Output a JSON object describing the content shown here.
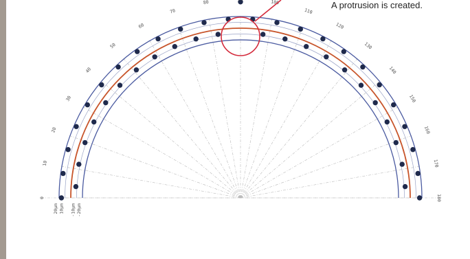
{
  "callout": {
    "text": "A protrusion is created."
  },
  "angle_labels": [
    "0",
    "10",
    "20",
    "30",
    "40",
    "50",
    "60",
    "70",
    "80",
    "90",
    "100",
    "110",
    "120",
    "130",
    "140",
    "150",
    "160",
    "170",
    "180"
  ],
  "scale_labels": [
    "20μm",
    "10μm",
    "-10μm",
    "-20μm"
  ],
  "measurement": {
    "deviation_um": [
      0,
      0,
      0,
      0,
      0,
      0,
      0,
      0,
      0,
      0,
      0,
      0,
      0,
      0,
      0,
      0,
      0,
      0,
      0,
      0,
      0,
      0,
      0,
      0,
      0,
      0,
      0,
      0,
      0,
      0,
      0,
      0,
      0,
      0,
      0,
      0,
      0,
      0,
      0,
      0,
      0,
      0,
      0,
      0,
      0,
      0,
      0
    ],
    "protrusion_um": 10
  },
  "colors": {
    "outer_ring": "#4a5aa0",
    "reference_ring": "#c8552b",
    "points": "#1f2a4c",
    "callout": "#d42b3c",
    "guides": "#b8b8b8",
    "side_bar": "#a39a91"
  }
}
